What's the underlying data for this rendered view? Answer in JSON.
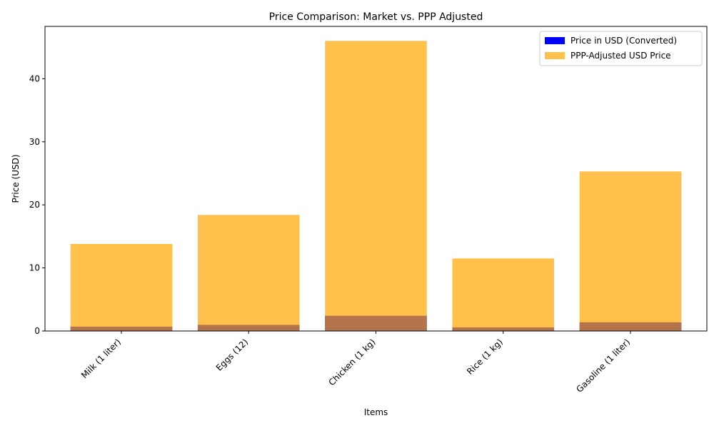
{
  "chart_data": {
    "type": "bar",
    "title": "Price Comparison: Market vs. PPP Adjusted",
    "xlabel": "Items",
    "ylabel": "Price (USD)",
    "categories": [
      "Milk (1 liter)",
      "Eggs (12)",
      "Chicken (1 kg)",
      "Rice (1 kg)",
      "Gasoline (1 liter)"
    ],
    "series": [
      {
        "name": "Price in USD (Converted)",
        "color": "#0000ff",
        "opacity": 1.0,
        "values": [
          0.69,
          0.97,
          2.41,
          0.57,
          1.38
        ]
      },
      {
        "name": "PPP-Adjusted USD Price",
        "color": "#ffa500",
        "opacity": 0.7,
        "values": [
          13.8,
          18.4,
          46.0,
          11.5,
          25.3
        ]
      }
    ],
    "ylim": [
      0,
      48.3
    ],
    "yticks": [
      0,
      10,
      20,
      30,
      40
    ],
    "legend": "top-right",
    "grid": false
  }
}
